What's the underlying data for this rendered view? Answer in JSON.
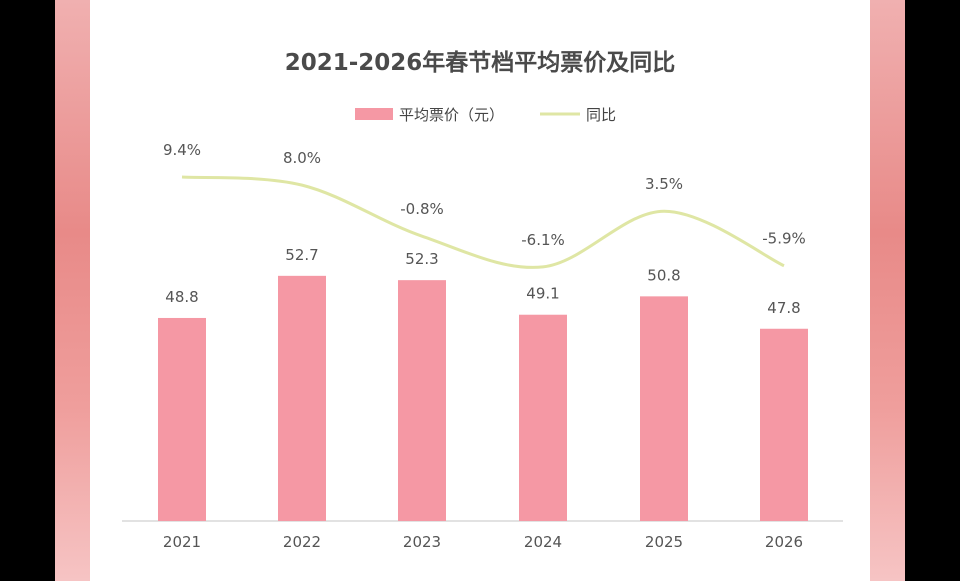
{
  "chart_data": {
    "type": "bar+line",
    "title": "2021-2026年春节档平均票价及同比",
    "categories": [
      "2021",
      "2022",
      "2023",
      "2024",
      "2025",
      "2026"
    ],
    "series": [
      {
        "name": "平均票价（元）",
        "type": "bar",
        "values": [
          48.8,
          52.7,
          52.3,
          49.1,
          50.8,
          47.8
        ],
        "labels": [
          "48.8",
          "52.7",
          "52.3",
          "49.1",
          "50.8",
          "47.8"
        ],
        "color": "#f598a4"
      },
      {
        "name": "同比",
        "type": "line",
        "smooth": true,
        "values": [
          9.4,
          8.0,
          -0.8,
          -6.1,
          3.5,
          -5.9
        ],
        "labels": [
          "9.4%",
          "8.0%",
          "-0.8%",
          "-6.1%",
          "3.5%",
          "-5.9%"
        ],
        "color": "#dfe6a4"
      }
    ],
    "legend": "top-center",
    "grid": false,
    "ylim": [
      30,
      60
    ]
  }
}
